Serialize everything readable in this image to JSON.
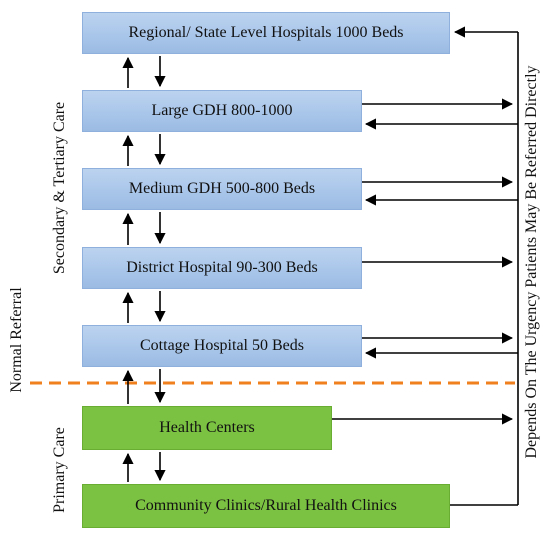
{
  "levels": {
    "regional": "Regional/ State Level Hospitals 1000 Beds",
    "large_gdh": "Large GDH 800-1000",
    "medium_gdh": "Medium GDH 500-800 Beds",
    "district": "District Hospital 90-300 Beds",
    "cottage": "Cottage Hospital 50 Beds",
    "health_centers": "Health Centers",
    "community": "Community Clinics/Rural Health Clinics"
  },
  "side_labels": {
    "secondary_tertiary": "Secondary & Tertiary Care",
    "normal_referral": "Normal Referral",
    "primary_care": "Primary Care",
    "urgency": "Depends On The Urgency Patients May Be Referred Directly"
  },
  "colors": {
    "secondary_box": "#a9c6ea",
    "primary_box": "#7cc242",
    "divider": "#f07f1e",
    "arrows": "#000000"
  }
}
